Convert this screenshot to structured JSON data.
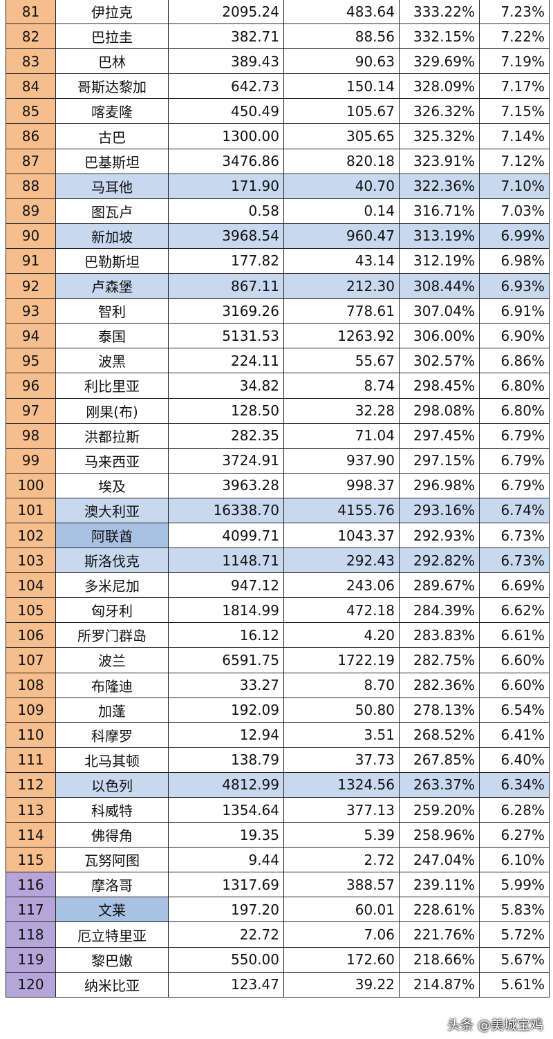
{
  "table": {
    "rows": [
      [
        "81",
        "伊拉克",
        "2095.24",
        "483.64",
        "333.22%",
        "7.23%"
      ],
      [
        "82",
        "巴拉圭",
        "382.71",
        "88.56",
        "332.15%",
        "7.22%"
      ],
      [
        "83",
        "巴林",
        "389.43",
        "90.63",
        "329.69%",
        "7.19%"
      ],
      [
        "84",
        "哥斯达黎加",
        "642.73",
        "150.14",
        "328.09%",
        "7.17%"
      ],
      [
        "85",
        "喀麦隆",
        "450.49",
        "105.67",
        "326.32%",
        "7.15%"
      ],
      [
        "86",
        "古巴",
        "1300.00",
        "305.65",
        "325.32%",
        "7.14%"
      ],
      [
        "87",
        "巴基斯坦",
        "3476.86",
        "820.18",
        "323.91%",
        "7.12%"
      ],
      [
        "88",
        "马耳他",
        "171.90",
        "40.70",
        "322.36%",
        "7.10%"
      ],
      [
        "89",
        "图瓦卢",
        "0.58",
        "0.14",
        "316.71%",
        "7.03%"
      ],
      [
        "90",
        "新加坡",
        "3968.54",
        "960.47",
        "313.19%",
        "6.99%"
      ],
      [
        "91",
        "巴勒斯坦",
        "177.82",
        "43.14",
        "312.19%",
        "6.98%"
      ],
      [
        "92",
        "卢森堡",
        "867.11",
        "212.30",
        "308.44%",
        "6.93%"
      ],
      [
        "93",
        "智利",
        "3169.26",
        "778.61",
        "307.04%",
        "6.91%"
      ],
      [
        "94",
        "泰国",
        "5131.53",
        "1263.92",
        "306.00%",
        "6.90%"
      ],
      [
        "95",
        "波黑",
        "224.11",
        "55.67",
        "302.57%",
        "6.86%"
      ],
      [
        "96",
        "利比里亚",
        "34.82",
        "8.74",
        "298.45%",
        "6.80%"
      ],
      [
        "97",
        "刚果(布)",
        "128.50",
        "32.28",
        "298.08%",
        "6.80%"
      ],
      [
        "98",
        "洪都拉斯",
        "282.35",
        "71.04",
        "297.45%",
        "6.79%"
      ],
      [
        "99",
        "马来西亚",
        "3724.91",
        "937.90",
        "297.15%",
        "6.79%"
      ],
      [
        "100",
        "埃及",
        "3963.28",
        "998.37",
        "296.98%",
        "6.79%"
      ],
      [
        "101",
        "澳大利亚",
        "16338.70",
        "4155.76",
        "293.16%",
        "6.74%"
      ],
      [
        "102",
        "阿联酋",
        "4099.71",
        "1043.37",
        "292.93%",
        "6.73%"
      ],
      [
        "103",
        "斯洛伐克",
        "1148.71",
        "292.43",
        "292.82%",
        "6.73%"
      ],
      [
        "104",
        "多米尼加",
        "947.12",
        "243.06",
        "289.67%",
        "6.69%"
      ],
      [
        "105",
        "匈牙利",
        "1814.99",
        "472.18",
        "284.39%",
        "6.62%"
      ],
      [
        "106",
        "所罗门群岛",
        "16.12",
        "4.20",
        "283.83%",
        "6.61%"
      ],
      [
        "107",
        "波兰",
        "6591.75",
        "1722.19",
        "282.75%",
        "6.60%"
      ],
      [
        "108",
        "布隆迪",
        "33.27",
        "8.70",
        "282.36%",
        "6.60%"
      ],
      [
        "109",
        "加蓬",
        "192.09",
        "50.80",
        "278.13%",
        "6.54%"
      ],
      [
        "110",
        "科摩罗",
        "12.94",
        "3.51",
        "268.52%",
        "6.41%"
      ],
      [
        "111",
        "北马其顿",
        "138.79",
        "37.73",
        "267.85%",
        "6.40%"
      ],
      [
        "112",
        "以色列",
        "4812.99",
        "1324.56",
        "263.37%",
        "6.34%"
      ],
      [
        "113",
        "科威特",
        "1354.64",
        "377.13",
        "259.20%",
        "6.28%"
      ],
      [
        "114",
        "佛得角",
        "19.35",
        "5.39",
        "258.96%",
        "6.27%"
      ],
      [
        "115",
        "瓦努阿图",
        "9.44",
        "2.72",
        "247.04%",
        "6.10%"
      ],
      [
        "116",
        "摩洛哥",
        "1317.69",
        "388.57",
        "239.11%",
        "5.99%"
      ],
      [
        "117",
        "文莱",
        "197.20",
        "60.01",
        "228.61%",
        "5.83%"
      ],
      [
        "118",
        "厄立特里亚",
        "22.72",
        "7.06",
        "221.76%",
        "5.72%"
      ],
      [
        "119",
        "黎巴嫩",
        "550.00",
        "172.60",
        "218.66%",
        "5.67%"
      ],
      [
        "120",
        "纳米比亚",
        "123.47",
        "39.22",
        "214.87%",
        "5.61%"
      ]
    ]
  },
  "watermark": "头条 @美城宝鸡"
}
